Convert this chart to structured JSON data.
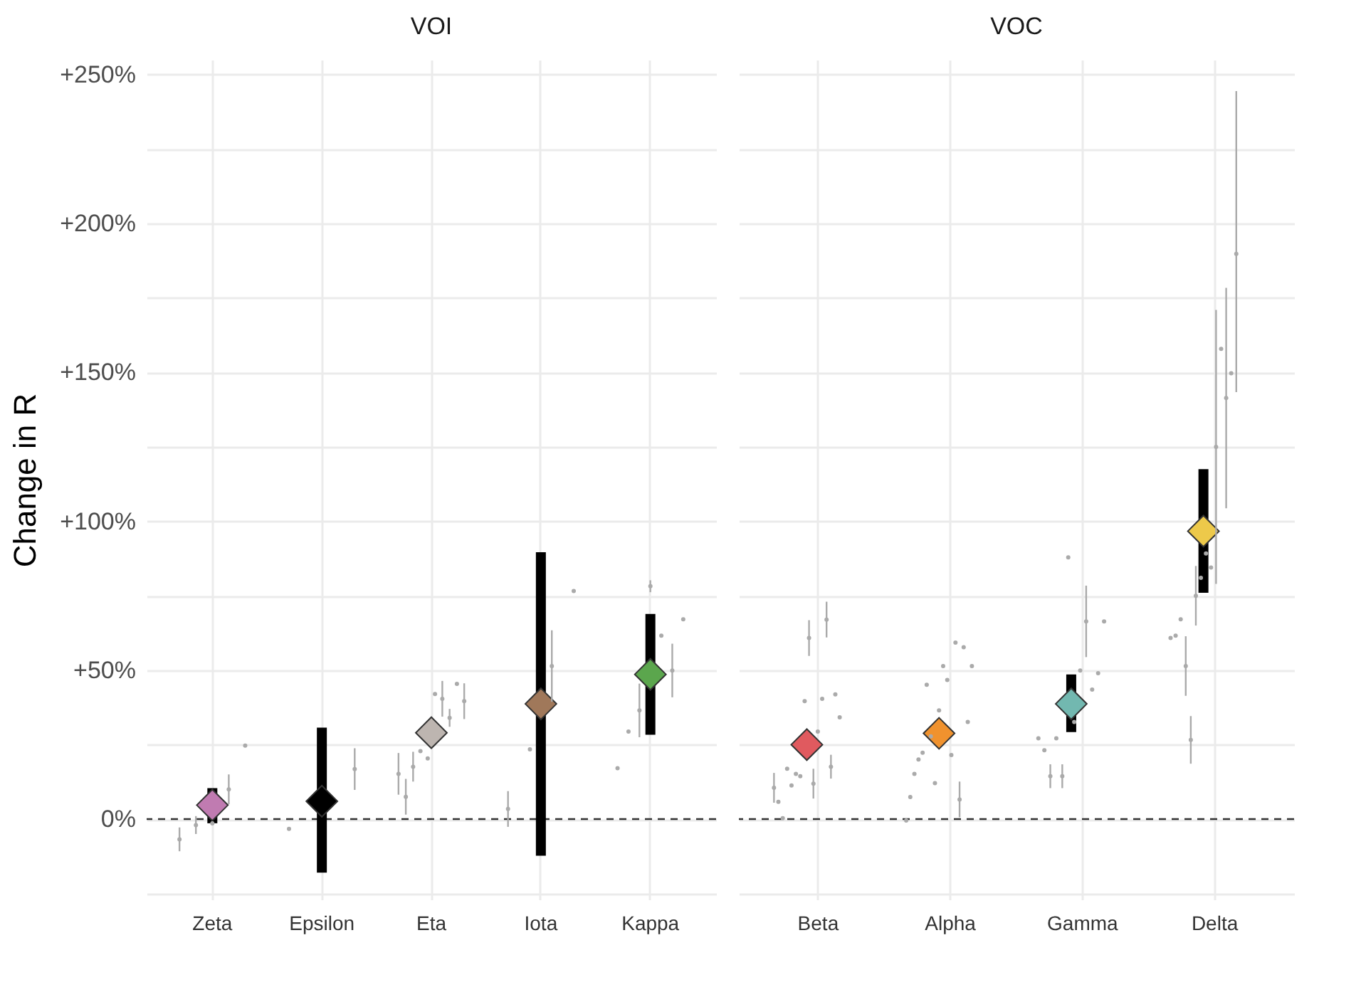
{
  "chart_data": [
    {
      "type": "scatter",
      "title": "VOI",
      "ylabel": "Change in R",
      "categories": [
        "Zeta",
        "Epsilon",
        "Eta",
        "Iota",
        "Kappa"
      ],
      "ylim": [
        -27,
        255
      ],
      "yticks": [
        {
          "value": -25,
          "label": null
        },
        {
          "value": 0,
          "label": "0%"
        },
        {
          "value": 25,
          "label": null
        },
        {
          "value": 50,
          "label": "+50%"
        },
        {
          "value": 75,
          "label": null
        },
        {
          "value": 100,
          "label": "+100%"
        },
        {
          "value": 125,
          "label": null
        },
        {
          "value": 150,
          "label": "+150%"
        },
        {
          "value": 175,
          "label": null
        },
        {
          "value": 200,
          "label": "+200%"
        },
        {
          "value": 225,
          "label": null
        },
        {
          "value": 250,
          "label": "+250%"
        }
      ],
      "grid": true,
      "ref_lines": [
        {
          "axis": "y",
          "value": 0,
          "line_style": "dashed",
          "color": "#333333"
        }
      ],
      "series": [
        {
          "type": "scatter",
          "marker": "diamond",
          "x": [
            "Zeta",
            "Epsilon",
            "Eta",
            "Iota",
            "Kappa"
          ],
          "values": [
            4.7,
            6,
            29,
            38.7,
            48.6
          ],
          "colors": [
            "#c07bb1",
            "#000000",
            "#bdb5b0",
            "#a0785a",
            "#5ba64d"
          ],
          "errors": [
            [
              -1.4,
              10.4
            ],
            [
              -18,
              30.7
            ],
            null,
            [
              -12.3,
              89.6
            ],
            [
              28.3,
              68.9
            ]
          ]
        },
        {
          "type": "scatter",
          "marker": "circle",
          "color": "#aaaaaa",
          "x": [
            "Zeta",
            "Zeta",
            "Zeta",
            "Zeta",
            "Zeta",
            "Epsilon",
            "Epsilon",
            "Eta",
            "Eta",
            "Eta",
            "Eta",
            "Eta",
            "Eta",
            "Eta",
            "Eta",
            "Eta",
            "Eta",
            "Iota",
            "Iota",
            "Iota",
            "Iota",
            "Kappa",
            "Kappa",
            "Kappa",
            "Kappa",
            "Kappa",
            "Kappa",
            "Kappa"
          ],
          "values": [
            -6.8,
            -2,
            -1.4,
            10,
            24.7,
            -3.3,
            16.8,
            15.2,
            7.5,
            17.6,
            22.8,
            20.4,
            42,
            40.4,
            34,
            45.4,
            39.6,
            3.4,
            23.4,
            51.4,
            76.6,
            17.1,
            29.4,
            36.5,
            78.2,
            61.6,
            49.9,
            67.1
          ],
          "errors": [
            4,
            3,
            null,
            5,
            null,
            null,
            7,
            7,
            6,
            5,
            null,
            null,
            null,
            6,
            3,
            null,
            6,
            6,
            null,
            12,
            null,
            null,
            null,
            9,
            2,
            null,
            9,
            null
          ]
        }
      ]
    },
    {
      "type": "scatter",
      "title": "VOC",
      "tick_labels": "x",
      "categories": [
        "Beta",
        "Alpha",
        "Gamma",
        "Delta"
      ],
      "ylim": [
        -27,
        255
      ],
      "yticks": [
        {
          "value": -25,
          "label": null
        },
        {
          "value": 0,
          "label": null
        },
        {
          "value": 25,
          "label": null
        },
        {
          "value": 50,
          "label": null
        },
        {
          "value": 75,
          "label": null
        },
        {
          "value": 100,
          "label": null
        },
        {
          "value": 125,
          "label": null
        },
        {
          "value": 150,
          "label": null
        },
        {
          "value": 175,
          "label": null
        },
        {
          "value": 200,
          "label": null
        },
        {
          "value": 225,
          "label": null
        },
        {
          "value": 250,
          "label": null
        }
      ],
      "grid": true,
      "ref_lines": [
        {
          "axis": "y",
          "value": 0,
          "line_style": "dashed",
          "color": "#333333"
        }
      ],
      "series": [
        {
          "type": "scatter",
          "marker": "diamond",
          "x": [
            "Beta",
            "Alpha",
            "Gamma",
            "Delta"
          ],
          "values": [
            25,
            28.8,
            38.7,
            96.7
          ],
          "colors": [
            "#e05a5f",
            "#f0922e",
            "#72b8b0",
            "#edc94a"
          ],
          "errors": [
            null,
            null,
            [
              29.2,
              48.6
            ],
            [
              76,
              117.5
            ]
          ]
        },
        {
          "type": "scatter",
          "marker": "circle",
          "color": "#aaaaaa",
          "x": [
            "Beta",
            "Beta",
            "Beta",
            "Beta",
            "Beta",
            "Beta",
            "Beta",
            "Beta",
            "Beta",
            "Beta",
            "Beta",
            "Beta",
            "Beta",
            "Beta",
            "Beta",
            "Beta",
            "Alpha",
            "Alpha",
            "Alpha",
            "Alpha",
            "Alpha",
            "Alpha",
            "Alpha",
            "Alpha",
            "Alpha",
            "Alpha",
            "Alpha",
            "Alpha",
            "Alpha",
            "Alpha",
            "Alpha",
            "Alpha",
            "Alpha",
            "Gamma",
            "Gamma",
            "Gamma",
            "Gamma",
            "Gamma",
            "Gamma",
            "Gamma",
            "Gamma",
            "Gamma",
            "Gamma",
            "Gamma",
            "Gamma",
            "Delta",
            "Delta",
            "Delta",
            "Delta",
            "Delta",
            "Delta",
            "Delta",
            "Delta",
            "Delta",
            "Delta",
            "Delta",
            "Delta",
            "Delta",
            "Delta"
          ],
          "values": [
            10.5,
            5.8,
            0.3,
            16.9,
            11.3,
            15.2,
            14.4,
            39.6,
            60.8,
            11.9,
            29.4,
            40.4,
            67,
            17.6,
            41.9,
            34.2,
            -0.5,
            7.4,
            15.2,
            20,
            22.3,
            45.1,
            27.8,
            12.1,
            36.5,
            51.4,
            46.7,
            21.5,
            59.3,
            6.6,
            57.7,
            32.6,
            51.4,
            27.1,
            23.1,
            14.4,
            27.1,
            14.4,
            87.9,
            32.6,
            49.9,
            66.4,
            43.5,
            49,
            66.4,
            60.8,
            61.6,
            67.1,
            51.4,
            26.6,
            75,
            81,
            89.2,
            84.5,
            125,
            157.9,
            141.4,
            149.7,
            189.8
          ],
          "errors": [
            5,
            null,
            null,
            null,
            null,
            null,
            null,
            null,
            6,
            5,
            null,
            null,
            6,
            4,
            null,
            null,
            null,
            null,
            null,
            null,
            null,
            null,
            null,
            null,
            null,
            null,
            null,
            null,
            null,
            6,
            null,
            null,
            null,
            null,
            null,
            4,
            null,
            4,
            null,
            null,
            null,
            12,
            null,
            null,
            null,
            null,
            null,
            null,
            10,
            8,
            10,
            null,
            null,
            null,
            46,
            null,
            37,
            null,
            [
              143.4,
              244.5
            ]
          ]
        }
      ]
    }
  ]
}
